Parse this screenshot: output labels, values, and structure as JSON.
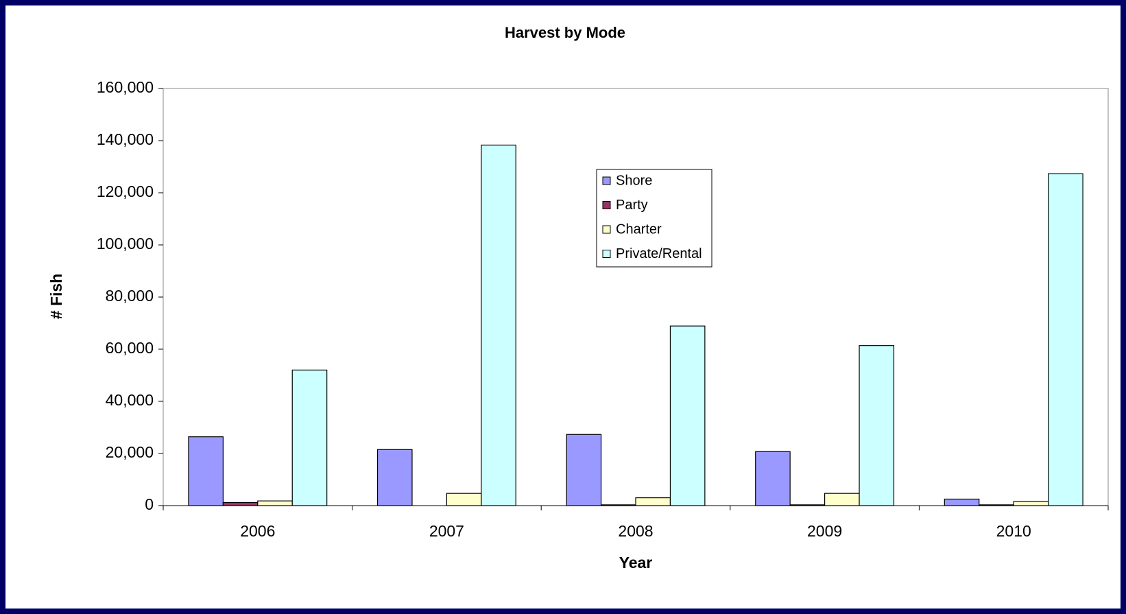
{
  "chart_data": {
    "type": "bar",
    "title": "Harvest by Mode",
    "x_label": "Year",
    "y_label": "# Fish",
    "categories": [
      "2006",
      "2007",
      "2008",
      "2009",
      "2010"
    ],
    "series": [
      {
        "name": "Shore",
        "color": "#9999ff",
        "values": [
          26400,
          21500,
          27300,
          20700,
          2500
        ]
      },
      {
        "name": "Party",
        "color": "#993366",
        "values": [
          1200,
          0,
          300,
          300,
          300
        ]
      },
      {
        "name": "Charter",
        "color": "#ffffcc",
        "values": [
          1800,
          4700,
          3000,
          4700,
          1600
        ]
      },
      {
        "name": "Private/Rental",
        "color": "#ccffff",
        "values": [
          52000,
          138300,
          68900,
          61400,
          127300
        ]
      }
    ],
    "ylim": [
      0,
      160000
    ],
    "yticks": [
      0,
      {
        "value": 20000,
        "label": "20,000"
      },
      {
        "value": 40000,
        "label": "40,000"
      },
      {
        "value": 60000,
        "label": "60,000"
      },
      {
        "value": 80000,
        "label": "80,000"
      },
      {
        "value": 100000,
        "label": "100,000"
      },
      {
        "value": 120000,
        "label": "120,000"
      },
      {
        "value": 140000,
        "label": "140,000"
      },
      {
        "value": 160000,
        "label": "160,000"
      }
    ],
    "grid": false,
    "legend_position": "top"
  }
}
